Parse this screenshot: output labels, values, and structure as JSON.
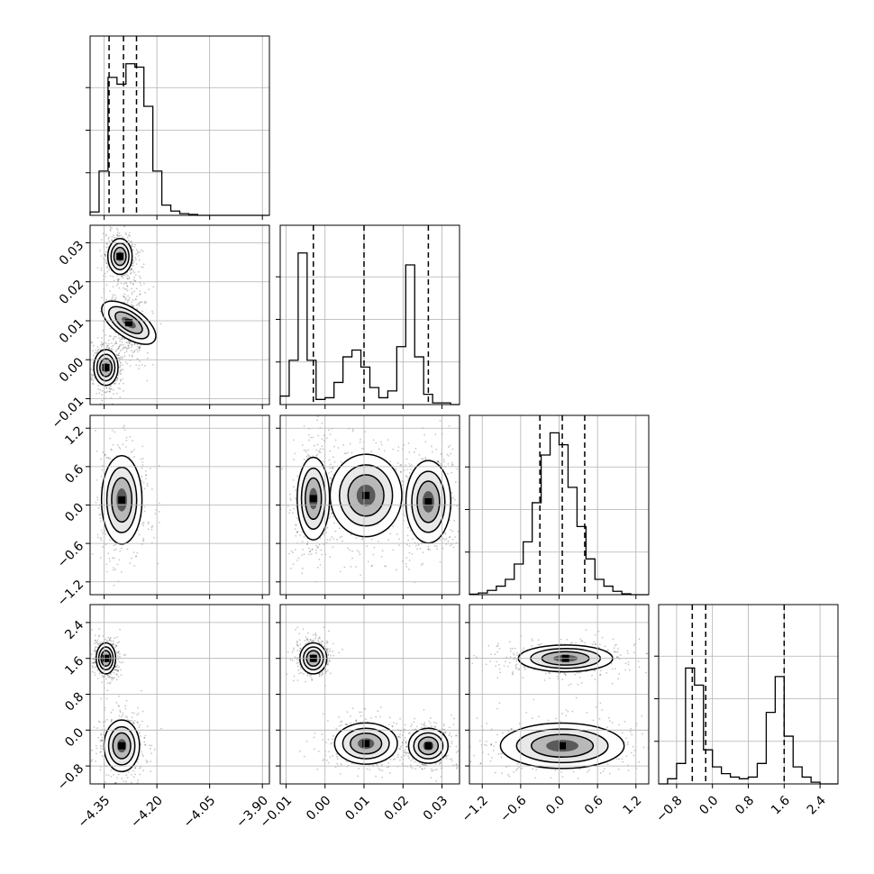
{
  "chart_data": {
    "type": "corner",
    "title": "",
    "grid": true,
    "params": [
      {
        "ticks": [
          -4.35,
          -4.2,
          -4.05,
          -3.9
        ],
        "tick_labels": [
          "−4.35",
          "−4.20",
          "−4.05",
          "−3.90"
        ],
        "range": [
          -4.39,
          -3.88
        ],
        "quantiles": [
          -4.336,
          -4.295,
          -4.258
        ]
      },
      {
        "ticks": [
          -0.01,
          0.0,
          0.01,
          0.02,
          0.03
        ],
        "tick_labels": [
          "−0.01",
          "0.00",
          "0.01",
          "0.02",
          "0.03"
        ],
        "range": [
          -0.0115,
          0.0345
        ],
        "quantiles": [
          -0.003,
          0.01,
          0.0265
        ]
      },
      {
        "ticks": [
          -1.2,
          -0.6,
          0.0,
          0.6,
          1.2
        ],
        "tick_labels": [
          "−1.2",
          "−0.6",
          "0.0",
          "0.6",
          "1.2"
        ],
        "range": [
          -1.4,
          1.4
        ],
        "quantiles": [
          -0.3,
          0.05,
          0.4
        ]
      },
      {
        "ticks": [
          -0.8,
          0.0,
          0.8,
          1.6,
          2.4
        ],
        "tick_labels": [
          "−0.8",
          "0.0",
          "0.8",
          "1.6",
          "2.4"
        ],
        "range": [
          -1.2,
          2.8
        ],
        "quantiles": [
          -0.45,
          -0.15,
          1.6
        ]
      }
    ],
    "histograms": [
      {
        "param": 0,
        "counts": [
          0.02,
          0.26,
          0.81,
          0.77,
          0.89,
          0.87,
          0.64,
          0.26,
          0.06,
          0.025,
          0.01,
          0.005,
          0,
          0,
          0,
          0,
          0,
          0,
          0,
          0
        ]
      },
      {
        "param": 1,
        "counts": [
          0.05,
          0.26,
          0.89,
          0.26,
          0.03,
          0.04,
          0.13,
          0.28,
          0.32,
          0.22,
          0.1,
          0.04,
          0.08,
          0.34,
          0.82,
          0.28,
          0.06,
          0.01,
          0.01,
          0
        ]
      },
      {
        "param": 2,
        "counts": [
          0.003,
          0.01,
          0.025,
          0.05,
          0.09,
          0.18,
          0.31,
          0.54,
          0.82,
          0.95,
          0.88,
          0.63,
          0.4,
          0.21,
          0.09,
          0.05,
          0.02,
          0.005,
          0,
          0
        ]
      },
      {
        "param": 3,
        "counts": [
          0,
          0.03,
          0.12,
          0.68,
          0.58,
          0.2,
          0.1,
          0.06,
          0.04,
          0.03,
          0.04,
          0.12,
          0.42,
          0.63,
          0.28,
          0.1,
          0.04,
          0.01,
          0,
          0
        ]
      }
    ],
    "pair_modes": [
      {
        "x": 0,
        "y": 1,
        "modes": [
          {
            "cx": -4.305,
            "cy": 0.0265,
            "sx": 0.015,
            "sy": 0.002
          },
          {
            "cx": -4.28,
            "cy": 0.0095,
            "sx": 0.018,
            "sy": 0.0035,
            "rot": -55
          },
          {
            "cx": -4.345,
            "cy": -0.002,
            "sx": 0.015,
            "sy": 0.002
          }
        ]
      },
      {
        "x": 0,
        "y": 2,
        "modes": [
          {
            "cx": -4.3,
            "cy": 0.08,
            "sx": 0.025,
            "sy": 0.3
          }
        ]
      },
      {
        "x": 1,
        "y": 2,
        "modes": [
          {
            "cx": -0.003,
            "cy": 0.1,
            "sx": 0.0018,
            "sy": 0.28
          },
          {
            "cx": 0.0105,
            "cy": 0.15,
            "sx": 0.004,
            "sy": 0.28
          },
          {
            "cx": 0.0265,
            "cy": 0.05,
            "sx": 0.0025,
            "sy": 0.28
          }
        ]
      },
      {
        "x": 0,
        "y": 3,
        "modes": [
          {
            "cx": -4.345,
            "cy": 1.6,
            "sx": 0.012,
            "sy": 0.15
          },
          {
            "cx": -4.3,
            "cy": -0.35,
            "sx": 0.022,
            "sy": 0.25
          }
        ]
      },
      {
        "x": 1,
        "y": 3,
        "modes": [
          {
            "cx": -0.003,
            "cy": 1.6,
            "sx": 0.0015,
            "sy": 0.15
          },
          {
            "cx": 0.0105,
            "cy": -0.3,
            "sx": 0.0035,
            "sy": 0.2
          },
          {
            "cx": 0.0265,
            "cy": -0.35,
            "sx": 0.0022,
            "sy": 0.17
          }
        ]
      },
      {
        "x": 2,
        "y": 3,
        "modes": [
          {
            "cx": 0.1,
            "cy": 1.6,
            "sx": 0.32,
            "sy": 0.13
          },
          {
            "cx": 0.05,
            "cy": -0.35,
            "sx": 0.42,
            "sy": 0.22
          }
        ]
      }
    ]
  }
}
